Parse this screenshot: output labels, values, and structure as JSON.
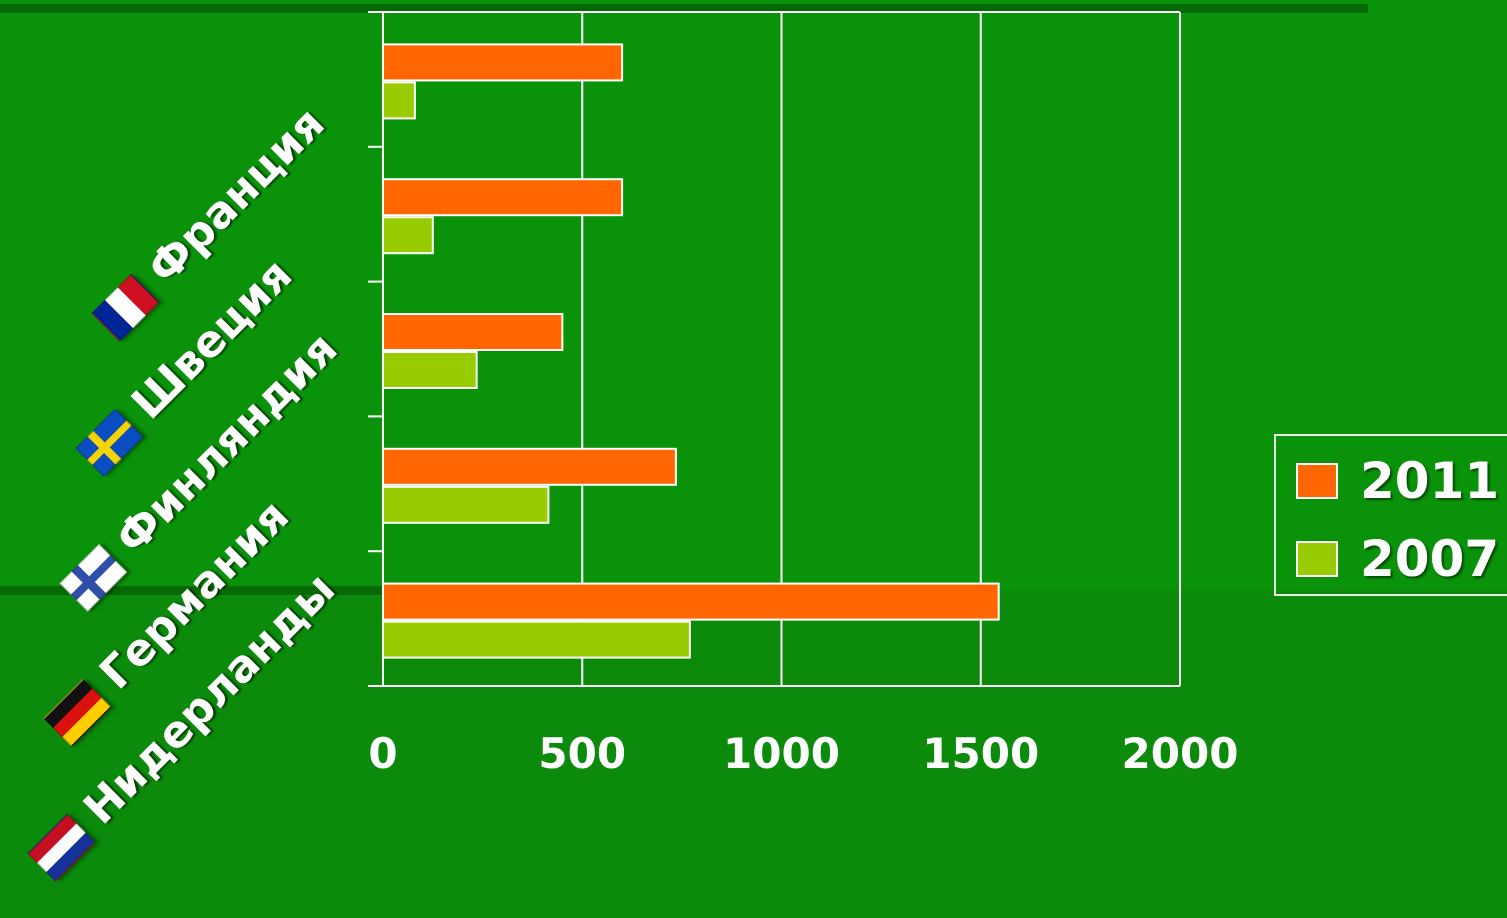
{
  "chart_data": {
    "type": "bar",
    "orientation": "horizontal",
    "categories": [
      "Франция",
      "Швеция",
      "Финляндия",
      "Германия",
      "Нидерланды"
    ],
    "category_flags": [
      "flag-france-icon",
      "flag-sweden-icon",
      "flag-finland-icon",
      "flag-germany-icon",
      "flag-netherlands-icon"
    ],
    "series": [
      {
        "name": "2011",
        "color": "#ff6600",
        "values": [
          600,
          600,
          450,
          735,
          1545
        ]
      },
      {
        "name": "2007",
        "color": "#99cc00",
        "values": [
          80,
          125,
          235,
          415,
          770
        ]
      }
    ],
    "x_ticks": [
      "0",
      "500",
      "1000",
      "1500",
      "2000"
    ],
    "xlim": [
      0,
      2000
    ],
    "grid": "vertical",
    "legend_position": "right"
  }
}
